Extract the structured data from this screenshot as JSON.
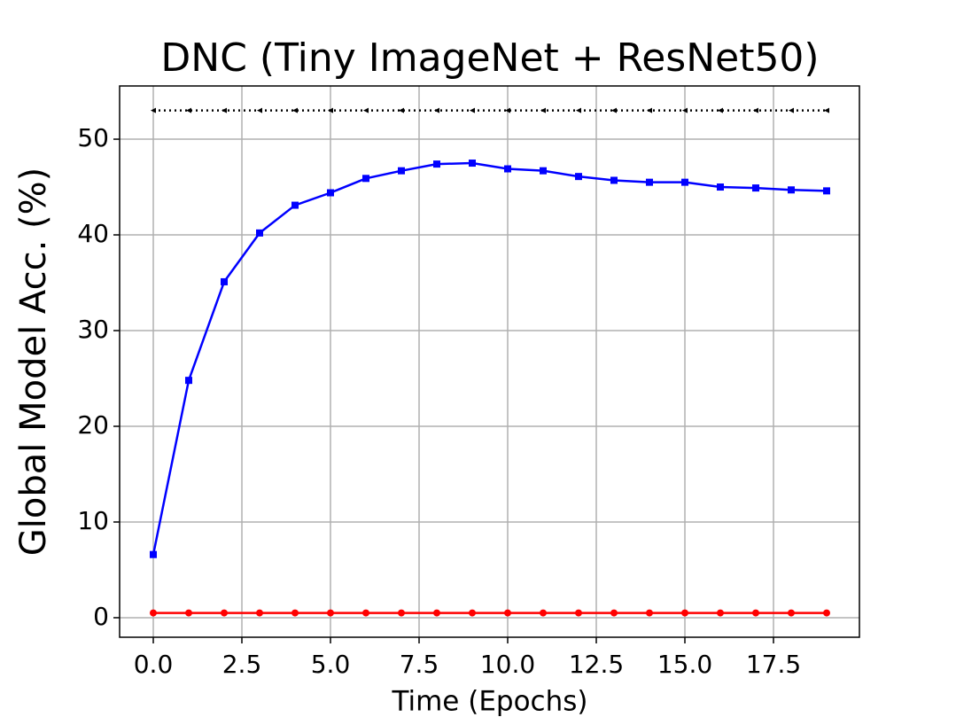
{
  "chart_data": {
    "type": "line",
    "title": "DNC (Tiny ImageNet + ResNet50)",
    "xlabel": "Time (Epochs)",
    "ylabel": "Global Model Acc. (%)",
    "x": [
      0,
      1,
      2,
      3,
      4,
      5,
      6,
      7,
      8,
      9,
      10,
      11,
      12,
      13,
      14,
      15,
      16,
      17,
      18,
      19
    ],
    "series": [
      {
        "color": "#0000ff",
        "marker": "square",
        "linestyle": "solid",
        "values": [
          6.6,
          24.8,
          35.1,
          40.2,
          43.1,
          44.4,
          45.9,
          46.7,
          47.4,
          47.5,
          46.9,
          46.7,
          46.1,
          45.7,
          45.5,
          45.5,
          45.0,
          44.9,
          44.7,
          44.6
        ]
      },
      {
        "color": "#ff0000",
        "marker": "circle",
        "linestyle": "solid",
        "values": [
          0.5,
          0.5,
          0.5,
          0.5,
          0.5,
          0.5,
          0.5,
          0.5,
          0.5,
          0.5,
          0.5,
          0.5,
          0.5,
          0.5,
          0.5,
          0.5,
          0.5,
          0.5,
          0.5,
          0.5
        ]
      },
      {
        "color": "#000000",
        "marker": "triangle-left",
        "linestyle": "dotted",
        "values": [
          53,
          53,
          53,
          53,
          53,
          53,
          53,
          53,
          53,
          53,
          53,
          53,
          53,
          53,
          53,
          53,
          53,
          53,
          53,
          53
        ]
      }
    ],
    "xlim": [
      -0.95,
      19.925
    ],
    "ylim": [
      -2.04,
      55.56
    ],
    "xticks": [
      {
        "value": 0,
        "label": "0.0"
      },
      {
        "value": 2.5,
        "label": "2.5"
      },
      {
        "value": 5,
        "label": "5.0"
      },
      {
        "value": 7.5,
        "label": "7.5"
      },
      {
        "value": 10,
        "label": "10.0"
      },
      {
        "value": 12.5,
        "label": "12.5"
      },
      {
        "value": 15,
        "label": "15.0"
      },
      {
        "value": 17.5,
        "label": "17.5"
      }
    ],
    "yticks": [
      0,
      10,
      20,
      30,
      40,
      50
    ],
    "grid": true
  }
}
